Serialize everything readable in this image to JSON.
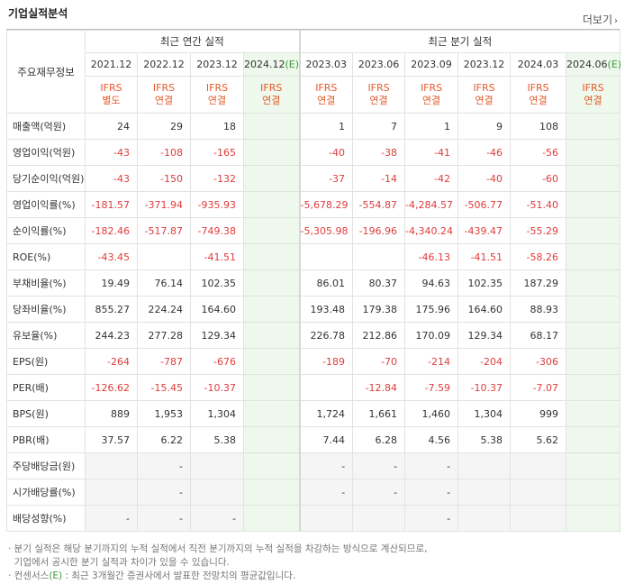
{
  "section_title": "기업실적분석",
  "more_label": "더보기",
  "more_arrow": "›",
  "header": {
    "corner_label": "주요재무정보",
    "annual_group": "최근 연간 실적",
    "quarter_group": "최근 분기 실적",
    "est_mark": "(E)",
    "annual_periods": [
      "2021.12",
      "2022.12",
      "2023.12",
      "2024.12"
    ],
    "quarter_periods": [
      "2023.03",
      "2023.06",
      "2023.09",
      "2023.12",
      "2024.03",
      "2024.06"
    ],
    "annual_std": [
      [
        "IFRS",
        "별도"
      ],
      [
        "IFRS",
        "연결"
      ],
      [
        "IFRS",
        "연결"
      ],
      [
        "IFRS",
        "연결"
      ]
    ],
    "quarter_std": [
      [
        "IFRS",
        "연결"
      ],
      [
        "IFRS",
        "연결"
      ],
      [
        "IFRS",
        "연결"
      ],
      [
        "IFRS",
        "연결"
      ],
      [
        "IFRS",
        "연결"
      ],
      [
        "IFRS",
        "연결"
      ]
    ]
  },
  "rows": [
    {
      "label": "매출액(억원)",
      "values": [
        "24",
        "29",
        "18",
        "",
        "1",
        "7",
        "1",
        "9",
        "108",
        ""
      ],
      "neg": false
    },
    {
      "label": "영업이익(억원)",
      "values": [
        "-43",
        "-108",
        "-165",
        "",
        "-40",
        "-38",
        "-41",
        "-46",
        "-56",
        ""
      ],
      "neg": true
    },
    {
      "label": "당기순이익(억원)",
      "values": [
        "-43",
        "-150",
        "-132",
        "",
        "-37",
        "-14",
        "-42",
        "-40",
        "-60",
        ""
      ],
      "neg": true
    },
    {
      "label": "영업이익률(%)",
      "values": [
        "-181.57",
        "-371.94",
        "-935.93",
        "",
        "-5,678.29",
        "-554.87",
        "-4,284.57",
        "-506.77",
        "-51.40",
        ""
      ],
      "neg": true
    },
    {
      "label": "순이익률(%)",
      "values": [
        "-182.46",
        "-517.87",
        "-749.38",
        "",
        "-5,305.98",
        "-196.96",
        "-4,340.24",
        "-439.47",
        "-55.29",
        ""
      ],
      "neg": true
    },
    {
      "label": "ROE(%)",
      "values": [
        "-43.45",
        "",
        "-41.51",
        "",
        "",
        "",
        "-46.13",
        "-41.51",
        "-58.26",
        ""
      ],
      "neg": true
    },
    {
      "label": "부채비율(%)",
      "values": [
        "19.49",
        "76.14",
        "102.35",
        "",
        "86.01",
        "80.37",
        "94.63",
        "102.35",
        "187.29",
        ""
      ],
      "neg": false
    },
    {
      "label": "당좌비율(%)",
      "values": [
        "855.27",
        "224.24",
        "164.60",
        "",
        "193.48",
        "179.38",
        "175.96",
        "164.60",
        "88.93",
        ""
      ],
      "neg": false
    },
    {
      "label": "유보율(%)",
      "values": [
        "244.23",
        "277.28",
        "129.34",
        "",
        "226.78",
        "212.86",
        "170.09",
        "129.34",
        "68.17",
        ""
      ],
      "neg": false
    },
    {
      "label": "EPS(원)",
      "values": [
        "-264",
        "-787",
        "-676",
        "",
        "-189",
        "-70",
        "-214",
        "-204",
        "-306",
        ""
      ],
      "neg": true
    },
    {
      "label": "PER(배)",
      "values": [
        "-126.62",
        "-15.45",
        "-10.37",
        "",
        "",
        "-12.84",
        "-7.59",
        "-10.37",
        "-7.07",
        ""
      ],
      "neg": true
    },
    {
      "label": "BPS(원)",
      "values": [
        "889",
        "1,953",
        "1,304",
        "",
        "1,724",
        "1,661",
        "1,460",
        "1,304",
        "999",
        ""
      ],
      "neg": false
    },
    {
      "label": "PBR(배)",
      "values": [
        "37.57",
        "6.22",
        "5.38",
        "",
        "7.44",
        "6.28",
        "4.56",
        "5.38",
        "5.62",
        ""
      ],
      "neg": false
    },
    {
      "label": "주당배당금(원)",
      "values": [
        "",
        "-",
        "",
        "",
        "-",
        "-",
        "-",
        "",
        "",
        ""
      ],
      "neg": false,
      "gray": true
    },
    {
      "label": "시가배당률(%)",
      "values": [
        "",
        "-",
        "",
        "",
        "-",
        "-",
        "-",
        "",
        "",
        ""
      ],
      "neg": false,
      "gray": true
    },
    {
      "label": "배당성향(%)",
      "values": [
        "-",
        "-",
        "-",
        "",
        "",
        "",
        "-",
        "",
        "",
        ""
      ],
      "neg": false,
      "gray": true
    }
  ],
  "notes": {
    "line1": "· 분기 실적은 해당 분기까지의 누적 실적에서 직전 분기까지의 누적 실적을 차감하는 방식으로 계산되므로,",
    "line2": "  기업에서 공시한 분기 실적과 차이가 있을 수 있습니다.",
    "line3_prefix": "· 컨센서스",
    "line3_mark": "(E)",
    "line3_suffix": " : 최근 3개월간 증권사에서 발표한 전망치의 평균값입니다."
  },
  "colors": {
    "negative": "#e03c3c",
    "ifrs": "#e35b2b",
    "estimate_bg": "#eef8ec",
    "estimate_text": "#3a9a3a"
  }
}
